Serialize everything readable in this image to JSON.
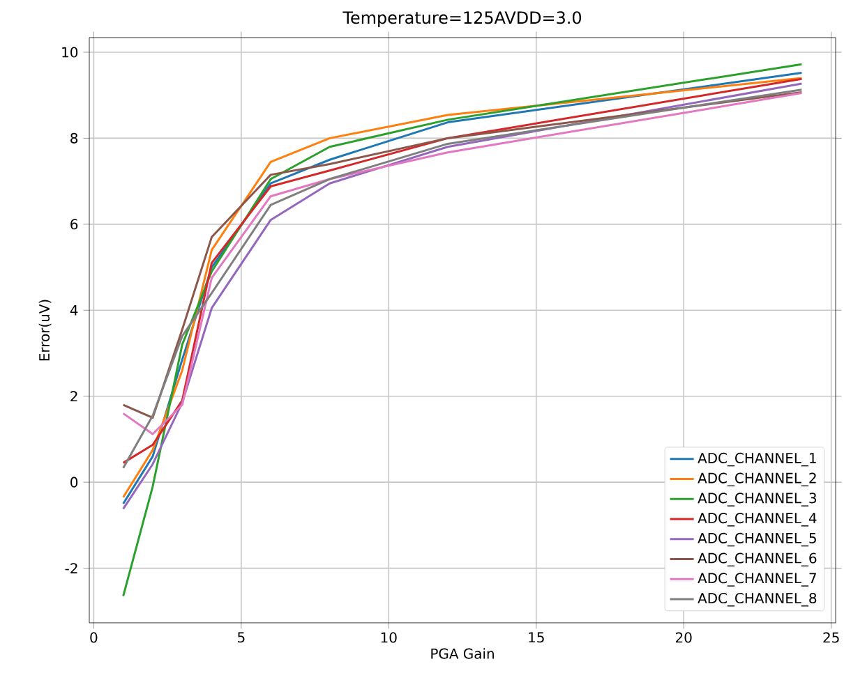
{
  "chart_data": {
    "type": "line",
    "title": "Temperature=125AVDD=3.0",
    "xlabel": "PGA Gain",
    "ylabel": "Error(uV)",
    "x": [
      1,
      2,
      3,
      4,
      6,
      8,
      12,
      24
    ],
    "series": [
      {
        "name": "ADC_CHANNEL_1",
        "color": "#1f77b4",
        "values": [
          -0.5,
          0.6,
          2.85,
          5.0,
          6.95,
          7.5,
          8.37,
          9.52
        ]
      },
      {
        "name": "ADC_CHANNEL_2",
        "color": "#ff7f0e",
        "values": [
          -0.35,
          0.75,
          2.6,
          5.4,
          7.45,
          8.0,
          8.54,
          9.4
        ]
      },
      {
        "name": "ADC_CHANNEL_3",
        "color": "#2ca02c",
        "values": [
          -2.65,
          -0.1,
          3.2,
          4.9,
          7.05,
          7.8,
          8.43,
          9.72
        ]
      },
      {
        "name": "ADC_CHANNEL_4",
        "color": "#d62728",
        "values": [
          0.45,
          0.87,
          1.9,
          5.1,
          6.88,
          7.25,
          8.0,
          9.38
        ]
      },
      {
        "name": "ADC_CHANNEL_5",
        "color": "#9467bd",
        "values": [
          -0.62,
          0.42,
          1.85,
          4.05,
          6.1,
          6.95,
          7.8,
          9.27
        ]
      },
      {
        "name": "ADC_CHANNEL_6",
        "color": "#8c564b",
        "values": [
          1.8,
          1.5,
          3.55,
          5.7,
          7.15,
          7.4,
          8.0,
          9.07
        ]
      },
      {
        "name": "ADC_CHANNEL_7",
        "color": "#e377c2",
        "values": [
          1.6,
          1.12,
          1.8,
          4.75,
          6.65,
          7.05,
          7.67,
          9.05
        ]
      },
      {
        "name": "ADC_CHANNEL_8",
        "color": "#7f7f7f",
        "values": [
          0.33,
          1.55,
          3.4,
          4.4,
          6.45,
          7.05,
          7.87,
          9.13
        ]
      }
    ],
    "xlim": [
      -0.15,
      25.15
    ],
    "ylim": [
      -3.27,
      10.34
    ],
    "xticks": [
      0,
      5,
      10,
      15,
      20,
      25
    ],
    "yticks": [
      -2,
      0,
      2,
      4,
      6,
      8,
      10
    ],
    "grid": true,
    "legend": "bottom right"
  }
}
